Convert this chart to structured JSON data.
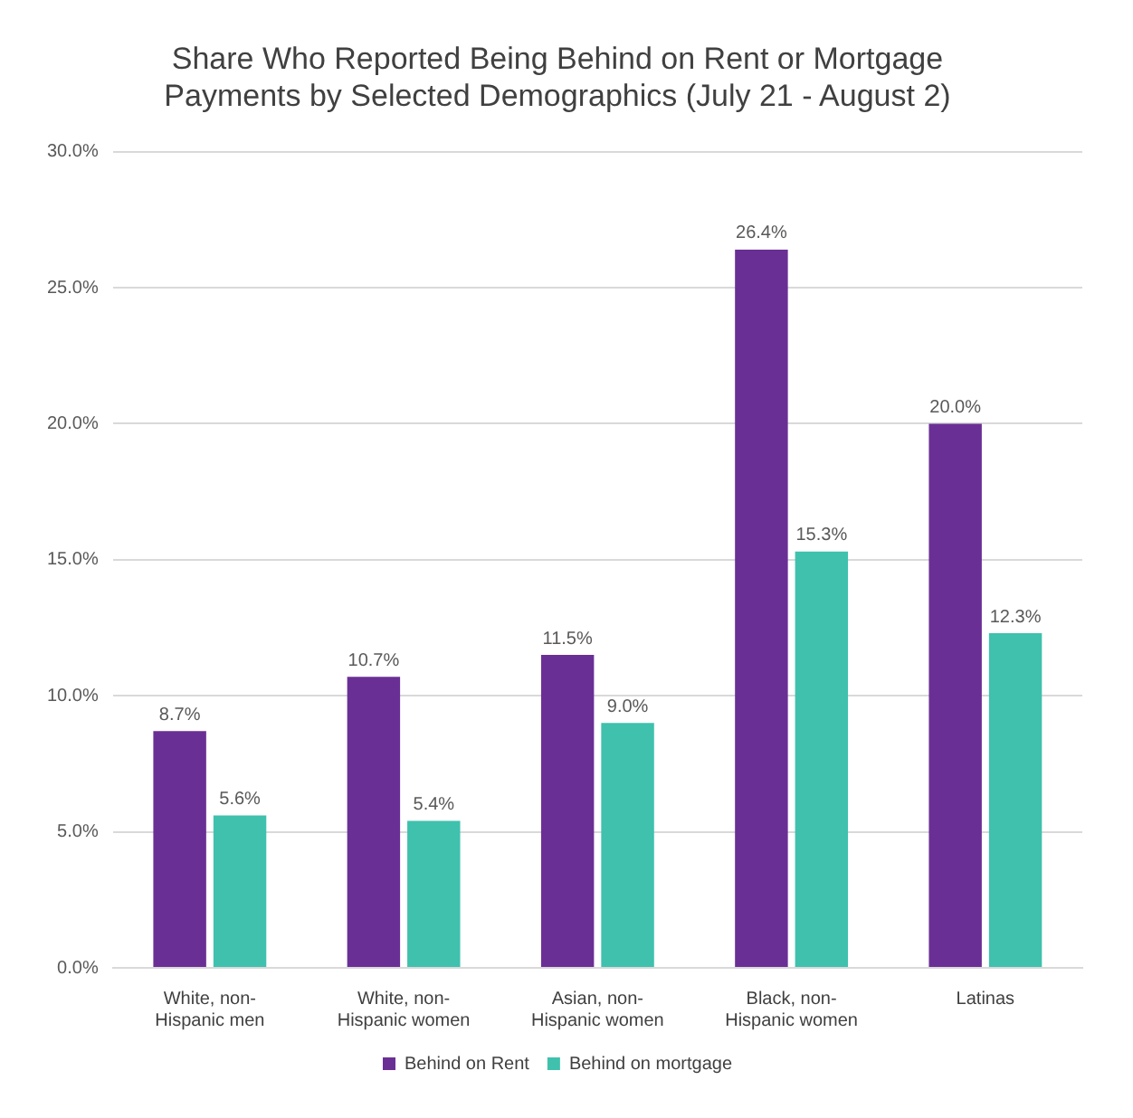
{
  "chart_data": {
    "type": "bar",
    "title": "Share Who Reported Being Behind on Rent or Mortgage Payments by Selected Demographics (July 21 - August 2)",
    "categories": [
      "White, non-Hispanic men",
      "White, non-Hispanic women",
      "Asian, non-Hispanic women",
      "Black, non-Hispanic women",
      "Latinas"
    ],
    "series": [
      {
        "name": "Behind on Rent",
        "color": "#6a2f95",
        "values": [
          8.7,
          10.7,
          11.5,
          26.4,
          20.0
        ],
        "value_labels": [
          "8.7%",
          "10.7%",
          "11.5%",
          "26.4%",
          "20.0%"
        ]
      },
      {
        "name": "Behind on mortgage",
        "color": "#3fc1ad",
        "values": [
          5.6,
          5.4,
          9.0,
          15.3,
          12.3
        ],
        "value_labels": [
          "5.6%",
          "5.4%",
          "9.0%",
          "15.3%",
          "12.3%"
        ]
      }
    ],
    "ylim": [
      0,
      30
    ],
    "yticks": [
      {
        "value": 0,
        "label": "0.0%"
      },
      {
        "value": 5,
        "label": "5.0%"
      },
      {
        "value": 10,
        "label": "10.0%"
      },
      {
        "value": 15,
        "label": "15.0%"
      },
      {
        "value": 20,
        "label": "20.0%"
      },
      {
        "value": 25,
        "label": "25.0%"
      },
      {
        "value": 30,
        "label": "30.0%"
      }
    ],
    "grid": "y",
    "legend": "bottom"
  }
}
